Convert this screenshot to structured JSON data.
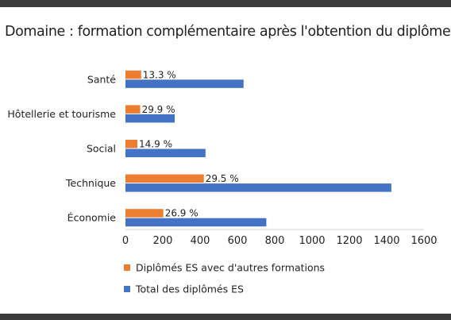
{
  "title": "Domaine : formation complémentaire après l'obtention du diplôme ES",
  "chart_data": {
    "type": "bar",
    "orientation": "horizontal",
    "title": "Domaine : formation complémentaire après l'obtention du diplôme ES",
    "categories": [
      "Santé",
      "Hôtellerie et tourisme",
      "Social",
      "Technique",
      "Économie"
    ],
    "series": [
      {
        "name": "Diplômés ES avec d'autres formations",
        "color": "#ed7d31",
        "values": [
          84,
          79,
          64,
          420,
          203
        ],
        "labels": [
          "13.3 %",
          "29.9 %",
          "14.9 %",
          "29.5 %",
          "26.9 %"
        ]
      },
      {
        "name": "Total des diplômés ES",
        "color": "#4472c4",
        "values": [
          633,
          264,
          429,
          1425,
          755
        ]
      }
    ],
    "xlim": [
      0,
      1600
    ],
    "xticks": [
      0,
      200,
      400,
      600,
      800,
      1000,
      1200,
      1400,
      1600
    ],
    "xtick_labels": [
      "0",
      "200",
      "400",
      "600",
      "800",
      "1000",
      "1200",
      "1400",
      "1600"
    ],
    "grid": false,
    "legend_position": "bottom"
  }
}
